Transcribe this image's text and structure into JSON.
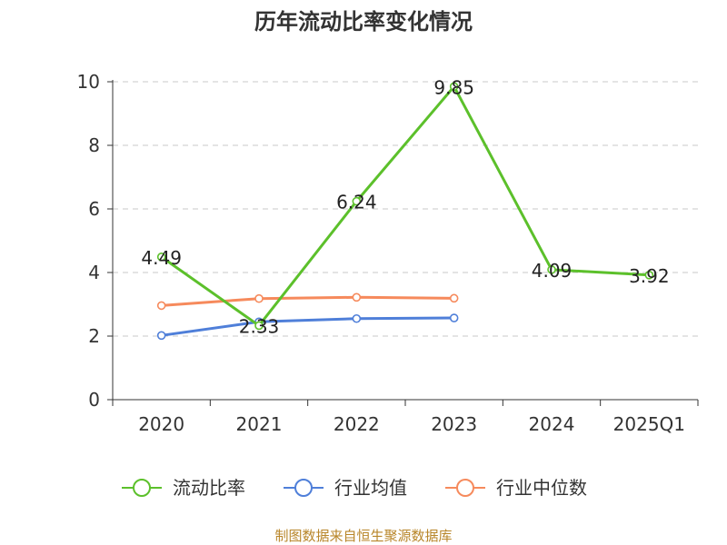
{
  "chart_data": {
    "type": "line",
    "title": "历年流动比率变化情况",
    "categories": [
      "2020",
      "2021",
      "2022",
      "2023",
      "2024",
      "2025Q1"
    ],
    "ylim": [
      0,
      10
    ],
    "yticks": [
      0,
      2,
      4,
      6,
      8,
      10
    ],
    "grid": true,
    "legend_position": "bottom",
    "series": [
      {
        "name": "流动比率",
        "color": "#5cc02b",
        "values": [
          4.49,
          2.33,
          6.24,
          9.85,
          4.09,
          3.92
        ],
        "labels": [
          "4.49",
          "2.33",
          "6.24",
          "9.85",
          "4.09",
          "3.92"
        ]
      },
      {
        "name": "行业均值",
        "color": "#4f7fd9",
        "values": [
          2.02,
          2.45,
          2.55,
          2.57,
          null,
          null
        ]
      },
      {
        "name": "行业中位数",
        "color": "#f68a5c",
        "values": [
          2.96,
          3.18,
          3.22,
          3.19,
          null,
          null
        ]
      }
    ]
  },
  "footer": "制图数据来自恒生聚源数据库"
}
